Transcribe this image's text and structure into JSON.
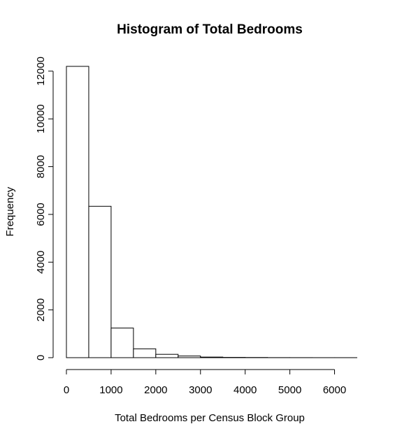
{
  "chart_data": {
    "type": "bar",
    "title": "Histogram of Total Bedrooms",
    "xlabel": "Total Bedrooms per Census Block Group",
    "ylabel": "Frequency",
    "bin_edges": [
      0,
      500,
      1000,
      1500,
      2000,
      2500,
      3000,
      3500,
      4000,
      4500,
      5000,
      5500,
      6000,
      6500
    ],
    "values": [
      12200,
      6340,
      1240,
      370,
      140,
      70,
      25,
      12,
      8,
      3,
      2,
      1,
      1
    ],
    "xlim": [
      0,
      6500
    ],
    "ylim": [
      0,
      12200
    ],
    "x_ticks": [
      0,
      1000,
      2000,
      3000,
      4000,
      5000,
      6000
    ],
    "x_tick_labels": [
      "0",
      "1000",
      "2000",
      "3000",
      "4000",
      "5000",
      "6000"
    ],
    "y_ticks": [
      0,
      2000,
      4000,
      6000,
      8000,
      10000,
      12000
    ],
    "y_tick_labels": [
      "0",
      "2000",
      "4000",
      "6000",
      "8000",
      "10000",
      "12000"
    ],
    "grid": false,
    "legend": "none"
  }
}
